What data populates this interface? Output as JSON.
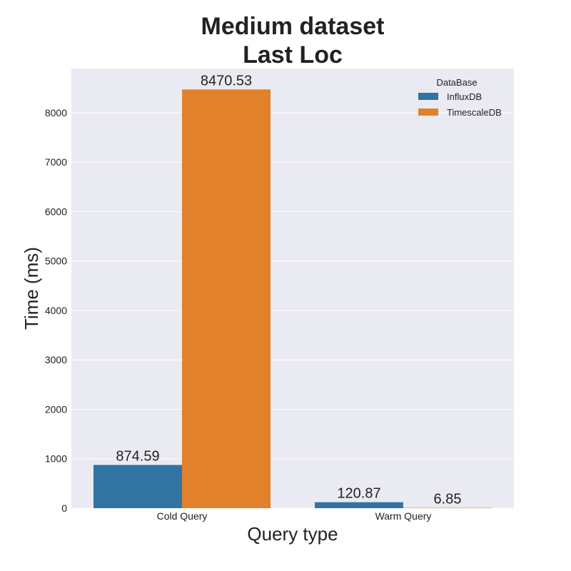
{
  "chart_data": {
    "type": "bar",
    "title_lines": [
      "Medium dataset",
      "Last Loc"
    ],
    "xlabel": "Query type",
    "ylabel": "Time (ms)",
    "categories": [
      "Cold Query",
      "Warm Query"
    ],
    "ylim": [
      0,
      8894
    ],
    "yticks": [
      0,
      1000,
      2000,
      3000,
      4000,
      5000,
      6000,
      7000,
      8000
    ],
    "grid": true,
    "legend": {
      "title": "DataBase",
      "placement": "top-right"
    },
    "series": [
      {
        "name": "InfluxDB",
        "color": "#3274a1",
        "values": [
          874.59,
          120.87
        ],
        "labels": [
          "874.59",
          "120.87"
        ]
      },
      {
        "name": "TimescaleDB",
        "color": "#e1812c",
        "values": [
          8470.53,
          6.85
        ],
        "labels": [
          "8470.53",
          "6.85"
        ]
      }
    ]
  },
  "colors": {
    "plot_background": "#eaeaf2",
    "grid": "#ffffff"
  }
}
